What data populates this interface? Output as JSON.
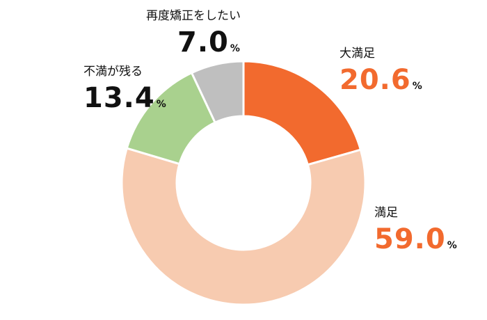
{
  "chart_data": {
    "type": "pie",
    "donut": true,
    "categories": [
      "大満足",
      "満足",
      "不満が残る",
      "再度矯正をしたい"
    ],
    "values": [
      20.6,
      59.0,
      13.4,
      7.0
    ],
    "value_labels": [
      "20.6",
      "59.0",
      "13.4",
      "7.0"
    ],
    "unit": "%",
    "colors": [
      "#f26a2e",
      "#f7cbb0",
      "#a9d18e",
      "#bfbfbf"
    ],
    "value_colors": [
      "#f26a2e",
      "#f26a2e",
      "#111111",
      "#111111"
    ],
    "title": "",
    "legend": "none"
  }
}
